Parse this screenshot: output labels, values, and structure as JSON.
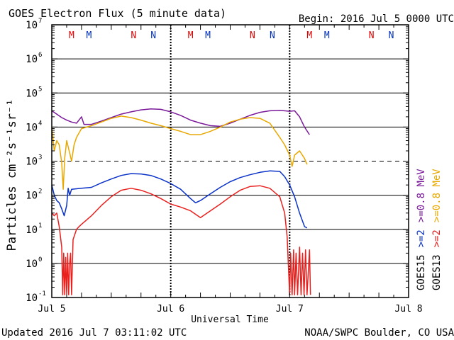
{
  "chart_data": {
    "type": "line",
    "title": "GOES Electron Flux (5 minute data)",
    "begin": "Begin: 2016 Jul 5 0000 UTC",
    "ylabel": "Particles cm⁻²s⁻¹sr⁻¹",
    "xlabel": "Universal Time",
    "yscale": "log",
    "ylim": [
      0.1,
      10000000
    ],
    "xlim": [
      0,
      72
    ],
    "y_ticks": [
      {
        "value": 10000000,
        "base": "10",
        "exp": "7"
      },
      {
        "value": 1000000,
        "base": "10",
        "exp": "6"
      },
      {
        "value": 100000,
        "base": "10",
        "exp": "5"
      },
      {
        "value": 10000,
        "base": "10",
        "exp": "4"
      },
      {
        "value": 1000,
        "base": "10",
        "exp": "3"
      },
      {
        "value": 100,
        "base": "10",
        "exp": "2"
      },
      {
        "value": 10,
        "base": "10",
        "exp": "1"
      },
      {
        "value": 1,
        "base": "10",
        "exp": "0"
      },
      {
        "value": 0.1,
        "base": "10",
        "exp": "-1"
      }
    ],
    "x_ticks": [
      {
        "hour": 0,
        "label": "Jul 5"
      },
      {
        "hour": 24,
        "label": "Jul 6"
      },
      {
        "hour": 48,
        "label": "Jul 7"
      },
      {
        "hour": 72,
        "label": "Jul 8"
      }
    ],
    "threshold": 1000,
    "mn_markers": [
      {
        "hour": 4,
        "label": "M",
        "color": "#e00000"
      },
      {
        "hour": 7.5,
        "label": "M",
        "color": "#0030c0"
      },
      {
        "hour": 16.5,
        "label": "N",
        "color": "#e00000"
      },
      {
        "hour": 20.5,
        "label": "N",
        "color": "#0030c0"
      },
      {
        "hour": 28,
        "label": "M",
        "color": "#e00000"
      },
      {
        "hour": 31.5,
        "label": "M",
        "color": "#0030c0"
      },
      {
        "hour": 40.5,
        "label": "N",
        "color": "#e00000"
      },
      {
        "hour": 44.5,
        "label": "N",
        "color": "#0030c0"
      },
      {
        "hour": 52,
        "label": "M",
        "color": "#e00000"
      },
      {
        "hour": 55.5,
        "label": "M",
        "color": "#0030c0"
      },
      {
        "hour": 64.5,
        "label": "N",
        "color": "#e00000"
      },
      {
        "hour": 68.5,
        "label": "N",
        "color": "#0030c0"
      }
    ],
    "series": [
      {
        "name": "GOES15 >=0.8 MeV",
        "color": "#7a1a9a",
        "points": [
          [
            0,
            30000
          ],
          [
            1,
            24000
          ],
          [
            2,
            19000
          ],
          [
            3,
            16000
          ],
          [
            4,
            14000
          ],
          [
            5,
            13000
          ],
          [
            6,
            20000
          ],
          [
            6.5,
            12000
          ],
          [
            8,
            12000
          ],
          [
            10,
            15000
          ],
          [
            12,
            19000
          ],
          [
            14,
            24000
          ],
          [
            16,
            28000
          ],
          [
            18,
            32000
          ],
          [
            20,
            34000
          ],
          [
            22,
            33000
          ],
          [
            24,
            28000
          ],
          [
            26,
            22000
          ],
          [
            28,
            16000
          ],
          [
            30,
            13000
          ],
          [
            32,
            11000
          ],
          [
            34,
            10500
          ],
          [
            36,
            13000
          ],
          [
            38,
            17000
          ],
          [
            40,
            22000
          ],
          [
            42,
            27000
          ],
          [
            44,
            30000
          ],
          [
            46,
            31000
          ],
          [
            48,
            29000
          ],
          [
            49,
            30000
          ],
          [
            50,
            20000
          ],
          [
            51,
            10000
          ],
          [
            52,
            6000
          ]
        ]
      },
      {
        "name": "GOES13 >=0.8 MeV",
        "color": "#e8a800",
        "points": [
          [
            0,
            10000
          ],
          [
            0.5,
            2000
          ],
          [
            1,
            4000
          ],
          [
            1.5,
            3000
          ],
          [
            2,
            900
          ],
          [
            2.3,
            150
          ],
          [
            2.6,
            1200
          ],
          [
            3,
            4000
          ],
          [
            3.5,
            2000
          ],
          [
            4,
            1000
          ],
          [
            4.5,
            3000
          ],
          [
            5,
            5000
          ],
          [
            6,
            9000
          ],
          [
            8,
            11000
          ],
          [
            10,
            14000
          ],
          [
            12,
            18000
          ],
          [
            14,
            21000
          ],
          [
            16,
            19000
          ],
          [
            18,
            16000
          ],
          [
            20,
            13000
          ],
          [
            22,
            11000
          ],
          [
            24,
            9000
          ],
          [
            26,
            7500
          ],
          [
            28,
            6000
          ],
          [
            30,
            6000
          ],
          [
            32,
            7500
          ],
          [
            34,
            10000
          ],
          [
            36,
            14000
          ],
          [
            38,
            17000
          ],
          [
            40,
            19000
          ],
          [
            42,
            18000
          ],
          [
            44,
            13000
          ],
          [
            46,
            5000
          ],
          [
            47,
            3000
          ],
          [
            48,
            1500
          ],
          [
            48.5,
            700
          ],
          [
            49,
            1500
          ],
          [
            50,
            2000
          ],
          [
            51,
            1200
          ],
          [
            51.5,
            800
          ]
        ]
      },
      {
        "name": "GOES15 >=2 MeV",
        "color": "#0a32c8",
        "points": [
          [
            0,
            200
          ],
          [
            0.5,
            100
          ],
          [
            1,
            70
          ],
          [
            1.5,
            60
          ],
          [
            2,
            40
          ],
          [
            2.5,
            25
          ],
          [
            3,
            50
          ],
          [
            3.3,
            160
          ],
          [
            3.6,
            100
          ],
          [
            4,
            150
          ],
          [
            6,
            160
          ],
          [
            8,
            170
          ],
          [
            10,
            230
          ],
          [
            12,
            300
          ],
          [
            14,
            380
          ],
          [
            16,
            430
          ],
          [
            18,
            420
          ],
          [
            20,
            380
          ],
          [
            22,
            300
          ],
          [
            24,
            220
          ],
          [
            26,
            150
          ],
          [
            28,
            80
          ],
          [
            29,
            60
          ],
          [
            30,
            70
          ],
          [
            32,
            110
          ],
          [
            34,
            170
          ],
          [
            36,
            250
          ],
          [
            38,
            330
          ],
          [
            40,
            400
          ],
          [
            42,
            470
          ],
          [
            44,
            520
          ],
          [
            46,
            500
          ],
          [
            47,
            350
          ],
          [
            48,
            200
          ],
          [
            49,
            90
          ],
          [
            50,
            30
          ],
          [
            51,
            12
          ],
          [
            51.5,
            11
          ]
        ]
      },
      {
        "name": "GOES13 >=2 MeV",
        "color": "#e8201e",
        "points": [
          [
            0,
            30
          ],
          [
            0.5,
            25
          ],
          [
            1,
            30
          ],
          [
            1.5,
            12
          ],
          [
            2,
            3
          ],
          [
            2.2,
            0.12
          ],
          [
            2.4,
            2
          ],
          [
            2.6,
            0.12
          ],
          [
            2.8,
            1.5
          ],
          [
            3,
            0.12
          ],
          [
            3.2,
            2
          ],
          [
            3.4,
            0.12
          ],
          [
            3.6,
            1
          ],
          [
            3.8,
            2
          ],
          [
            4,
            0.12
          ],
          [
            4.3,
            5
          ],
          [
            5,
            10
          ],
          [
            5.5,
            12
          ],
          [
            6,
            14
          ],
          [
            8,
            25
          ],
          [
            10,
            50
          ],
          [
            12,
            90
          ],
          [
            14,
            140
          ],
          [
            16,
            160
          ],
          [
            18,
            140
          ],
          [
            20,
            110
          ],
          [
            22,
            80
          ],
          [
            24,
            55
          ],
          [
            26,
            45
          ],
          [
            28,
            35
          ],
          [
            30,
            22
          ],
          [
            32,
            35
          ],
          [
            34,
            55
          ],
          [
            36,
            90
          ],
          [
            38,
            140
          ],
          [
            40,
            180
          ],
          [
            42,
            190
          ],
          [
            44,
            160
          ],
          [
            46,
            90
          ],
          [
            47,
            30
          ],
          [
            47.5,
            6
          ],
          [
            48,
            0.12
          ],
          [
            48.2,
            2
          ],
          [
            48.5,
            0.12
          ],
          [
            48.8,
            2.5
          ],
          [
            49,
            0.12
          ],
          [
            49.3,
            2
          ],
          [
            49.6,
            0.12
          ],
          [
            50,
            3
          ],
          [
            50.3,
            0.12
          ],
          [
            50.6,
            2
          ],
          [
            50.9,
            0.12
          ],
          [
            51.2,
            2.5
          ],
          [
            51.5,
            0.12
          ],
          [
            52,
            2.5
          ],
          [
            52.2,
            0.12
          ]
        ]
      }
    ],
    "right_labels": [
      {
        "text": "GOES15",
        "color": "#000000"
      },
      {
        "text": ">=2",
        "color": "#0a32c8"
      },
      {
        "text": ">=0.8 MeV",
        "color": "#7a1a9a"
      },
      {
        "text": "GOES13",
        "color": "#000000"
      },
      {
        "text": ">=2",
        "color": "#e8201e"
      },
      {
        "text": ">=0.8 MeV",
        "color": "#e8a800"
      }
    ]
  },
  "footer": {
    "updated": "Updated 2016 Jul  7 03:11:02 UTC",
    "credit": "NOAA/SWPC Boulder, CO USA"
  }
}
